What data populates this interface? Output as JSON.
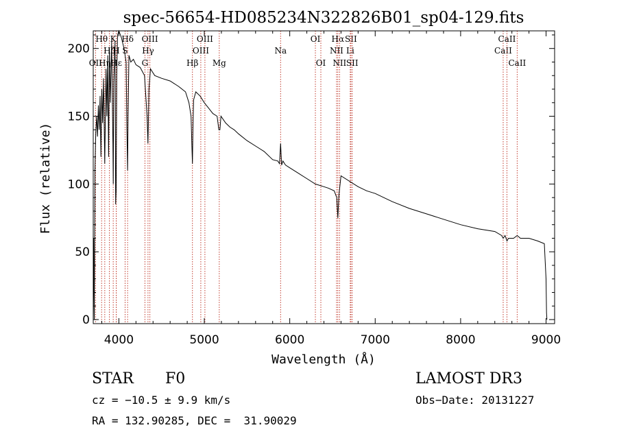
{
  "chart_data": {
    "type": "line",
    "title": "spec-56654-HD085234N322826B01_sp04-129.fits",
    "xlabel": "Wavelength (Å)",
    "ylabel": "Flux (relative)",
    "xlim": [
      3700,
      9100
    ],
    "ylim": [
      -3,
      213
    ],
    "x_ticks": [
      {
        "value": 4000,
        "label": "4000"
      },
      {
        "value": 5000,
        "label": "5000"
      },
      {
        "value": 6000,
        "label": "6000"
      },
      {
        "value": 7000,
        "label": "7000"
      },
      {
        "value": 8000,
        "label": "8000"
      },
      {
        "value": 9000,
        "label": "9000"
      }
    ],
    "y_ticks": [
      {
        "value": 0,
        "label": "0"
      },
      {
        "value": 50,
        "label": "50"
      },
      {
        "value": 100,
        "label": "100"
      },
      {
        "value": 150,
        "label": "150"
      },
      {
        "value": 200,
        "label": "200"
      }
    ],
    "series": [
      {
        "name": "flux",
        "x": [
          3700,
          3706,
          3712,
          3720,
          3730,
          3740,
          3750,
          3760,
          3770,
          3780,
          3790,
          3800,
          3810,
          3820,
          3835,
          3850,
          3860,
          3870,
          3880,
          3889,
          3900,
          3915,
          3930,
          3934,
          3940,
          3955,
          3962,
          3968,
          3975,
          3985,
          4000,
          4030,
          4060,
          4085,
          4094,
          4102,
          4108,
          4118,
          4140,
          4170,
          4200,
          4250,
          4300,
          4320,
          4330,
          4340,
          4345,
          4352,
          4370,
          4420,
          4500,
          4600,
          4700,
          4780,
          4820,
          4845,
          4855,
          4861,
          4867,
          4875,
          4900,
          4950,
          5000,
          5050,
          5100,
          5150,
          5170,
          5183,
          5195,
          5250,
          5300,
          5350,
          5400,
          5500,
          5600,
          5700,
          5800,
          5860,
          5880,
          5893,
          5905,
          5920,
          5950,
          6000,
          6100,
          6200,
          6300,
          6400,
          6450,
          6520,
          6550,
          6563,
          6576,
          6600,
          6700,
          6800,
          6900,
          7000,
          7200,
          7400,
          7600,
          7800,
          8000,
          8200,
          8400,
          8480,
          8498,
          8520,
          8542,
          8560,
          8620,
          8662,
          8700,
          8800,
          8900,
          8980,
          9000,
          9005,
          9010
        ],
        "y": [
          0,
          60,
          0,
          110,
          138,
          150,
          135,
          158,
          140,
          165,
          120,
          170,
          145,
          178,
          115,
          185,
          150,
          195,
          120,
          200,
          160,
          205,
          130,
          100,
          175,
          205,
          85,
          95,
          180,
          210,
          213,
          208,
          200,
          190,
          140,
          110,
          150,
          195,
          190,
          192,
          188,
          186,
          180,
          160,
          150,
          130,
          145,
          170,
          185,
          180,
          178,
          176,
          172,
          168,
          160,
          150,
          128,
          115,
          140,
          162,
          168,
          165,
          160,
          156,
          152,
          150,
          140,
          140,
          150,
          145,
          142,
          140,
          137,
          132,
          128,
          124,
          118,
          117,
          115,
          130,
          114,
          117,
          114,
          112,
          108,
          104,
          100,
          98,
          97,
          95,
          90,
          75,
          92,
          106,
          102,
          98,
          95,
          93,
          87,
          82,
          78,
          74,
          70,
          67,
          65,
          62,
          60,
          62,
          58,
          60,
          60,
          62,
          60,
          60,
          58,
          56,
          30,
          5,
          0
        ]
      }
    ],
    "line_markers": [
      {
        "label": "OII",
        "x": 3727,
        "row": 3
      },
      {
        "label": "Hθ",
        "x": 3798,
        "row": 1
      },
      {
        "label": "Hη",
        "x": 3835,
        "row": 3
      },
      {
        "label": "Hζ",
        "x": 3889,
        "row": 2
      },
      {
        "label": "K",
        "x": 3934,
        "row": 1
      },
      {
        "label": "H",
        "x": 3969,
        "row": 2
      },
      {
        "label": "Hε",
        "x": 3970,
        "row": 3
      },
      {
        "label": "Hδ",
        "x": 4102,
        "row": 1
      },
      {
        "label": "S",
        "x": 4073,
        "row": 2
      },
      {
        "label": "G",
        "x": 4305,
        "row": 3
      },
      {
        "label": "Hγ",
        "x": 4341,
        "row": 2
      },
      {
        "label": "OIII",
        "x": 4363,
        "row": 1
      },
      {
        "label": "Hβ",
        "x": 4861,
        "row": 3
      },
      {
        "label": "OIII",
        "x": 4959,
        "row": 2
      },
      {
        "label": "OIII",
        "x": 5007,
        "row": 1
      },
      {
        "label": "Mg",
        "x": 5175,
        "row": 3
      },
      {
        "label": "Na",
        "x": 5893,
        "row": 2
      },
      {
        "label": "OI",
        "x": 6300,
        "row": 1
      },
      {
        "label": "OI",
        "x": 6364,
        "row": 3
      },
      {
        "label": "NII",
        "x": 6548,
        "row": 2
      },
      {
        "label": "Hα",
        "x": 6563,
        "row": 1
      },
      {
        "label": "NII",
        "x": 6583,
        "row": 3
      },
      {
        "label": "Li",
        "x": 6708,
        "row": 2
      },
      {
        "label": "SII",
        "x": 6716,
        "row": 1
      },
      {
        "label": "SII",
        "x": 6731,
        "row": 3
      },
      {
        "label": "CaII",
        "x": 8498,
        "row": 2
      },
      {
        "label": "CaII",
        "x": 8542,
        "row": 1
      },
      {
        "label": "CaII",
        "x": 8662,
        "row": 3
      }
    ]
  },
  "info": {
    "class": "STAR",
    "subclass": "F0",
    "survey": "LAMOST DR3",
    "cz": "cz = −10.5 ± 9.9 km/s",
    "obs_date": "Obs−Date: 20131227",
    "radec": "RA = 132.90285, DEC =  31.90029"
  },
  "colors": {
    "marker": "#c0392b",
    "spectrum": "#000000"
  }
}
